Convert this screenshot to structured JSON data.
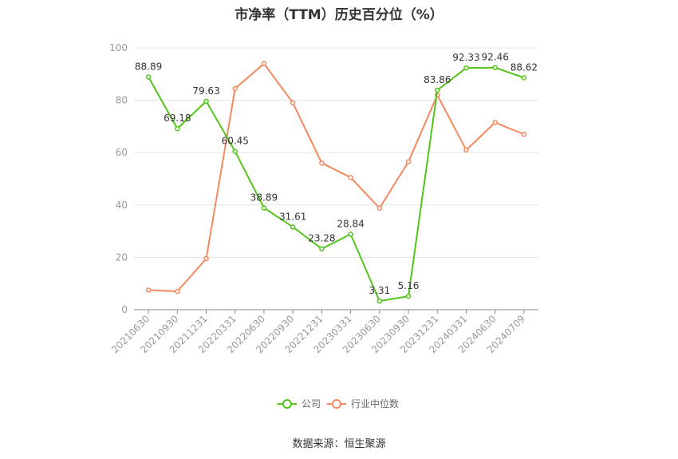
{
  "title": "市净率（TTM）历史百分位（%）",
  "source": "数据来源：恒生聚源",
  "chart_data": {
    "type": "line",
    "title": "市净率（TTM）历史百分位（%）",
    "categories": [
      "20210630",
      "20210930",
      "20211231",
      "20220331",
      "20220630",
      "20220930",
      "20221231",
      "20230331",
      "20230630",
      "20230930",
      "20231231",
      "20240331",
      "20240630",
      "20240709"
    ],
    "ylim": [
      0,
      100
    ],
    "yticks": [
      0,
      20,
      40,
      60,
      80,
      100
    ],
    "grid": true,
    "legend_position": "bottom",
    "series": [
      {
        "name": "公司",
        "color": "#52c41a",
        "values": [
          88.89,
          69.18,
          79.63,
          60.45,
          38.89,
          31.61,
          23.28,
          28.84,
          3.31,
          5.16,
          83.86,
          92.33,
          92.46,
          88.62
        ],
        "labels": [
          "88.89",
          "69.18",
          "79.63",
          "60.45",
          "38.89",
          "31.61",
          "23.28",
          "28.84",
          "3.31",
          "5.16",
          "83.86",
          "92.33",
          "92.46",
          "88.62"
        ]
      },
      {
        "name": "行业中位数",
        "color": "#f4885f",
        "values": [
          7.5,
          7.0,
          19.5,
          84.5,
          94.0,
          79.0,
          56.0,
          50.5,
          38.8,
          56.5,
          82.0,
          61.0,
          71.5,
          67.0
        ]
      }
    ]
  }
}
